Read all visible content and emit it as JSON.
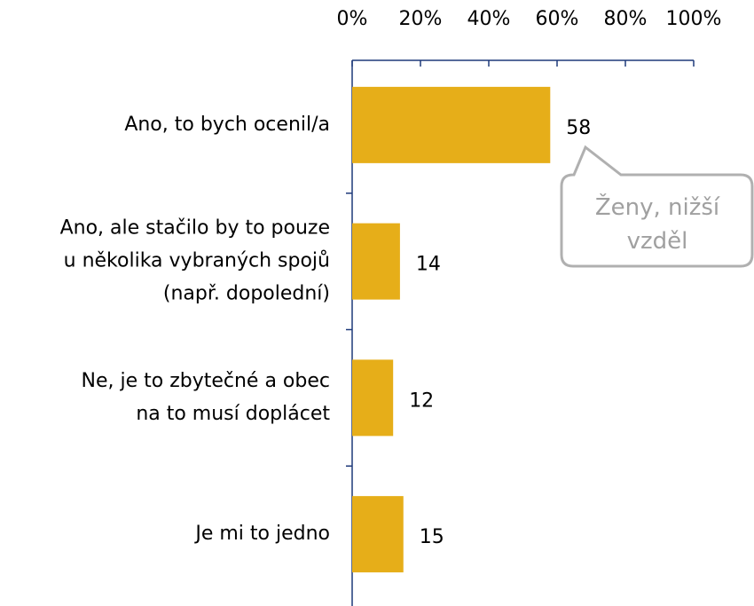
{
  "chart_data": {
    "type": "bar",
    "orientation": "horizontal",
    "categories": [
      "Ano, to bych ocenil/a",
      "Ano, ale stačilo by to pouze\nu několika vybraných spojů\n(např. dopolední)",
      "Ne, je to zbytečné a obec\nna to musí doplácet",
      "Je mi to jedno"
    ],
    "values": [
      58,
      14,
      12,
      15
    ],
    "color": "#e6ae19",
    "xlim": [
      0,
      100
    ],
    "xticks": [
      {
        "value": 0,
        "label": "0%"
      },
      {
        "value": 20,
        "label": "20%"
      },
      {
        "value": 40,
        "label": "40%"
      },
      {
        "value": 60,
        "label": "60%"
      },
      {
        "value": 80,
        "label": "80%"
      },
      {
        "value": 100,
        "label": "100%"
      }
    ],
    "annotation": "Ženy, nižší\nvzděl"
  }
}
